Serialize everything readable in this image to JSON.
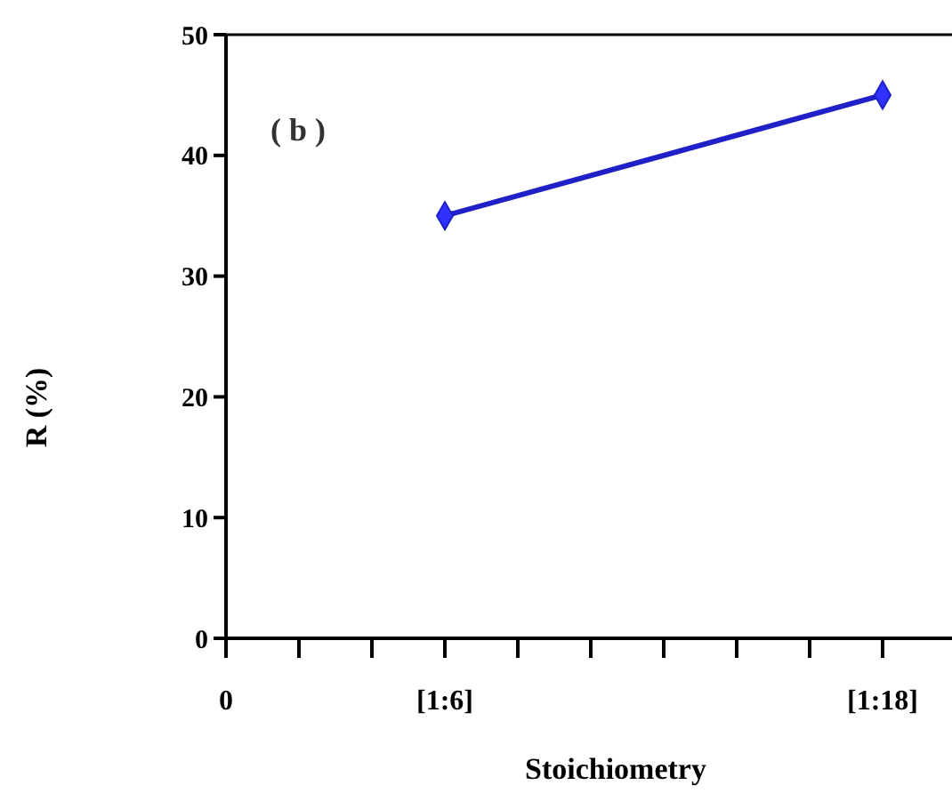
{
  "chart_data": {
    "type": "line",
    "xlabel": "Stoichiometry",
    "ylabel": "R (%)",
    "annotations": [
      "( b )"
    ],
    "categories": [
      "0",
      null,
      null,
      "[1:6]",
      null,
      null,
      null,
      null,
      null,
      "[1:18]"
    ],
    "series": [
      {
        "color": "#2020c8",
        "values": [
          null,
          null,
          null,
          35,
          null,
          null,
          null,
          null,
          null,
          45
        ]
      }
    ],
    "ylim": [
      0,
      50
    ],
    "yticks": [
      0,
      10,
      20,
      30,
      40,
      50
    ],
    "grid": false,
    "marker": "diamond",
    "line_style": "solid"
  }
}
